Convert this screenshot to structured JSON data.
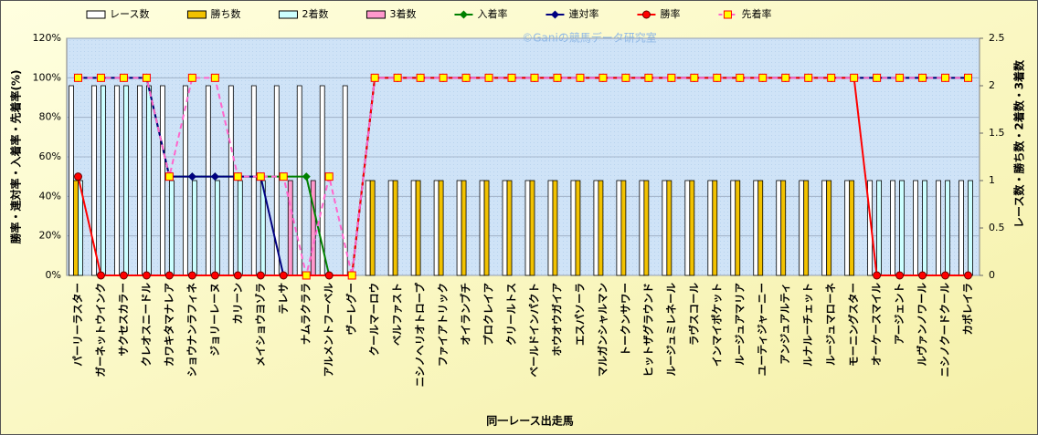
{
  "chart_data": {
    "type": "combo",
    "watermark": "©Ganiの競馬データ研究室",
    "x_label": "同一レース出走馬",
    "y_label": "勝率・連対率・入着率・先着率(%)",
    "y2_label": "レース数・勝ち数・2着数・3着数",
    "categories": [
      "パーリーラスター",
      "ガーネットウインク",
      "サクセスカラー",
      "クレオスニードル",
      "カワキタマナレア",
      "ショウナンラフィネ",
      "ジョリーレーヌ",
      "カリーン",
      "メイショウヨゾラ",
      "テレサ",
      "ナムラクララ",
      "アルメントフーベル",
      "ヴーレグー",
      "クールマーロウ",
      "ベルファスト",
      "ニシノヘリオトロープ",
      "ファイアトリック",
      "オイランブチ",
      "プロクレイア",
      "クリールトス",
      "ベールドインパクト",
      "ホウオウガイア",
      "エスパソーラ",
      "マルガンシャルマン",
      "トークンサワー",
      "ヒットザグラウンド",
      "ルージュミレネール",
      "ラヴスコール",
      "インマイポケット",
      "ルージュアマリア",
      "ユーティジャーニー",
      "アンジュアルティ",
      "ルナルーチェット",
      "ルージュマローネ",
      "モーニングスター",
      "オーケースマイル",
      "アージェント",
      "ルヴァンノワール",
      "ニシノクードクール",
      "カポレイラ"
    ],
    "ylim": [
      0,
      120
    ],
    "yticks": [
      {
        "value": 0,
        "label": "0%"
      },
      {
        "value": 20,
        "label": "20%"
      },
      {
        "value": 40,
        "label": "40%"
      },
      {
        "value": 60,
        "label": "60%"
      },
      {
        "value": 80,
        "label": "80%"
      },
      {
        "value": 100,
        "label": "100%"
      },
      {
        "value": 120,
        "label": "120%"
      }
    ],
    "y2lim": [
      0,
      2.5
    ],
    "y2ticks": [
      0,
      0.5,
      1,
      1.5,
      2,
      2.5
    ],
    "grid": true,
    "legend": "top",
    "series": [
      {
        "name": "レース数",
        "type": "bar",
        "axis": "y2",
        "color": "#ffffff",
        "values": [
          2,
          2,
          2,
          2,
          2,
          2,
          2,
          2,
          2,
          2,
          2,
          2,
          2,
          1,
          1,
          1,
          1,
          1,
          1,
          1,
          1,
          1,
          1,
          1,
          1,
          1,
          1,
          1,
          1,
          1,
          1,
          1,
          1,
          1,
          1,
          1,
          1,
          1,
          1,
          1
        ]
      },
      {
        "name": "勝ち数",
        "type": "bar",
        "axis": "y2",
        "color": "#f2c200",
        "values": [
          1,
          0,
          0,
          0,
          0,
          0,
          0,
          0,
          0,
          0,
          0,
          0,
          0,
          1,
          1,
          1,
          1,
          1,
          1,
          1,
          1,
          1,
          1,
          1,
          1,
          1,
          1,
          1,
          1,
          1,
          1,
          1,
          1,
          1,
          1,
          0,
          0,
          0,
          0,
          0
        ]
      },
      {
        "name": "2着数",
        "type": "bar",
        "axis": "y2",
        "color": "#ccffff",
        "values": [
          1,
          2,
          2,
          2,
          1,
          1,
          1,
          1,
          1,
          0,
          0,
          0,
          0,
          0,
          0,
          0,
          0,
          0,
          0,
          0,
          0,
          0,
          0,
          0,
          0,
          0,
          0,
          0,
          0,
          0,
          0,
          0,
          0,
          0,
          0,
          1,
          1,
          1,
          1,
          1
        ]
      },
      {
        "name": "3着数",
        "type": "bar",
        "axis": "y2",
        "color": "#ff99cc",
        "values": [
          0,
          0,
          0,
          0,
          0,
          0,
          0,
          0,
          0,
          1,
          1,
          0,
          0,
          0,
          0,
          0,
          0,
          0,
          0,
          0,
          0,
          0,
          0,
          0,
          0,
          0,
          0,
          0,
          0,
          0,
          0,
          0,
          0,
          0,
          0,
          0,
          0,
          0,
          0,
          0
        ]
      },
      {
        "name": "入着率",
        "type": "line",
        "axis": "y",
        "color": "#008000",
        "marker": "diamond",
        "values": [
          100,
          100,
          100,
          100,
          50,
          50,
          50,
          50,
          50,
          50,
          50,
          0,
          0,
          100,
          100,
          100,
          100,
          100,
          100,
          100,
          100,
          100,
          100,
          100,
          100,
          100,
          100,
          100,
          100,
          100,
          100,
          100,
          100,
          100,
          100,
          100,
          100,
          100,
          100,
          100
        ]
      },
      {
        "name": "連対率",
        "type": "line",
        "axis": "y",
        "color": "#000080",
        "marker": "diamond",
        "values": [
          100,
          100,
          100,
          100,
          50,
          50,
          50,
          50,
          50,
          0,
          0,
          0,
          0,
          100,
          100,
          100,
          100,
          100,
          100,
          100,
          100,
          100,
          100,
          100,
          100,
          100,
          100,
          100,
          100,
          100,
          100,
          100,
          100,
          100,
          100,
          100,
          100,
          100,
          100,
          100
        ]
      },
      {
        "name": "勝率",
        "type": "line",
        "axis": "y",
        "color": "#ff0000",
        "marker": "circle",
        "values": [
          50,
          0,
          0,
          0,
          0,
          0,
          0,
          0,
          0,
          0,
          0,
          0,
          0,
          100,
          100,
          100,
          100,
          100,
          100,
          100,
          100,
          100,
          100,
          100,
          100,
          100,
          100,
          100,
          100,
          100,
          100,
          100,
          100,
          100,
          100,
          0,
          0,
          0,
          0,
          0
        ]
      },
      {
        "name": "先着率",
        "type": "line",
        "axis": "y",
        "color": "#ff66cc",
        "marker": "square",
        "dashed": true,
        "values": [
          100,
          100,
          100,
          100,
          50,
          100,
          100,
          50,
          50,
          50,
          0,
          50,
          0,
          100,
          100,
          100,
          100,
          100,
          100,
          100,
          100,
          100,
          100,
          100,
          100,
          100,
          100,
          100,
          100,
          100,
          100,
          100,
          100,
          100,
          100,
          100,
          100,
          100,
          100,
          100
        ]
      }
    ]
  }
}
